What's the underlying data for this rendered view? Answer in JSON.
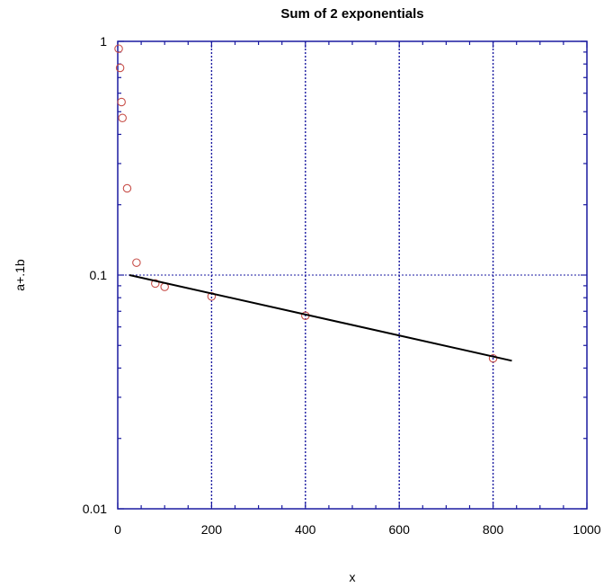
{
  "chart_data": {
    "type": "scatter",
    "title": "Sum of 2 exponentials",
    "xlabel": "x",
    "ylabel": "a+.1b",
    "xlim": [
      0,
      1000
    ],
    "ylim": [
      0.01,
      1
    ],
    "yscale": "log",
    "x_ticks": [
      {
        "value": 0,
        "label": "0"
      },
      {
        "value": 200,
        "label": "200"
      },
      {
        "value": 400,
        "label": "400"
      },
      {
        "value": 600,
        "label": "600"
      },
      {
        "value": 800,
        "label": "800"
      },
      {
        "value": 1000,
        "label": "1000"
      }
    ],
    "y_ticks": [
      {
        "value": 0.01,
        "label": "0.01"
      },
      {
        "value": 0.1,
        "label": "0.1"
      },
      {
        "value": 1,
        "label": "1"
      }
    ],
    "grid": "dotted vertical lines at x = 200, 400, 600, 800 and horizontal line at y = 0.1",
    "series": [
      {
        "kind": "points",
        "marker": "open-circle",
        "color": "#c8504a",
        "x": [
          2,
          5,
          8,
          10,
          20,
          40,
          80,
          100,
          200,
          400,
          800
        ],
        "y": [
          0.93,
          0.77,
          0.55,
          0.47,
          0.235,
          0.113,
          0.092,
          0.089,
          0.081,
          0.067,
          0.044
        ]
      },
      {
        "kind": "line",
        "color": "#000000",
        "x": [
          25,
          840
        ],
        "y": [
          0.1,
          0.043
        ]
      }
    ],
    "axis_color": "#1a1aa0",
    "grid_color": "#1a1aa0"
  }
}
